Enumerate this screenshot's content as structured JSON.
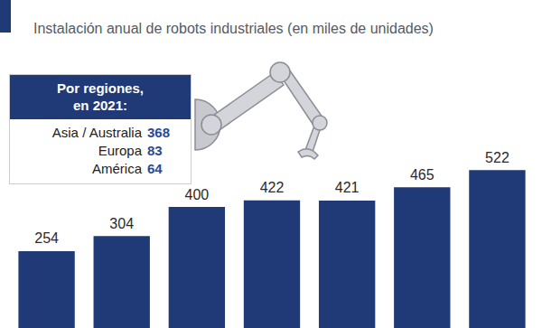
{
  "chart_data": {
    "type": "bar",
    "subtitle": "Instalación anual de robots industriales (en miles de unidades)",
    "categories": [
      null,
      null,
      null,
      null,
      null,
      null,
      null
    ],
    "values": [
      254,
      304,
      400,
      422,
      421,
      465,
      522
    ],
    "color": "#1f3a77",
    "ylim": [
      0,
      600
    ],
    "yticks": [
      0,
      600
    ],
    "grid": false,
    "data_labels": true,
    "tick_labels": false
  },
  "region_table": {
    "header": [
      "Por regiones,",
      "en 2021:"
    ],
    "rows": [
      {
        "label": "Asia / Australia",
        "value": 368
      },
      {
        "label": "Europa",
        "value": 83
      },
      {
        "label": "América",
        "value": 64
      }
    ]
  }
}
